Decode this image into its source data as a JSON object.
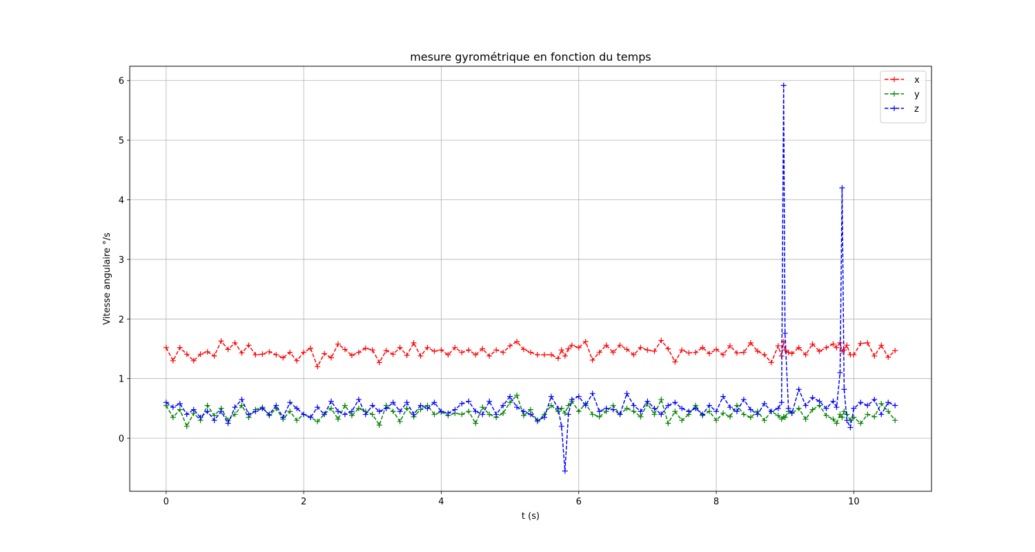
{
  "chart_data": {
    "type": "line",
    "title": "mesure gyrométrique en fonction du temps",
    "xlabel": "t (s)",
    "ylabel": "Vitesse angulaire °/s",
    "xlim": [
      -0.53,
      11.13
    ],
    "ylim": [
      -0.89,
      6.24
    ],
    "xticks": [
      0,
      2,
      4,
      6,
      8,
      10
    ],
    "yticks": [
      0,
      1,
      2,
      3,
      4,
      5,
      6
    ],
    "grid": true,
    "legend_position": "top-right",
    "x": [
      0.0,
      0.1,
      0.2,
      0.3,
      0.4,
      0.5,
      0.6,
      0.7,
      0.8,
      0.9,
      1.0,
      1.1,
      1.2,
      1.3,
      1.4,
      1.5,
      1.6,
      1.7,
      1.8,
      1.9,
      2.0,
      2.1,
      2.2,
      2.3,
      2.4,
      2.5,
      2.6,
      2.7,
      2.8,
      2.9,
      3.0,
      3.1,
      3.2,
      3.3,
      3.4,
      3.5,
      3.6,
      3.7,
      3.8,
      3.9,
      4.0,
      4.1,
      4.2,
      4.3,
      4.4,
      4.5,
      4.6,
      4.7,
      4.8,
      4.9,
      5.0,
      5.1,
      5.2,
      5.3,
      5.4,
      5.5,
      5.6,
      5.7,
      5.75,
      5.8,
      5.85,
      5.9,
      6.0,
      6.1,
      6.2,
      6.3,
      6.4,
      6.5,
      6.6,
      6.7,
      6.8,
      6.9,
      7.0,
      7.1,
      7.2,
      7.3,
      7.4,
      7.5,
      7.6,
      7.7,
      7.8,
      7.9,
      8.0,
      8.1,
      8.2,
      8.3,
      8.4,
      8.5,
      8.6,
      8.7,
      8.8,
      8.9,
      8.95,
      8.98,
      9.0,
      9.05,
      9.1,
      9.2,
      9.3,
      9.4,
      9.5,
      9.6,
      9.7,
      9.75,
      9.8,
      9.83,
      9.86,
      9.9,
      9.95,
      10.0,
      10.1,
      10.2,
      10.3,
      10.4,
      10.5,
      10.6
    ],
    "series": [
      {
        "name": "x",
        "color": "#ff0000",
        "values": [
          1.52,
          1.3,
          1.52,
          1.41,
          1.3,
          1.41,
          1.45,
          1.38,
          1.63,
          1.49,
          1.6,
          1.43,
          1.56,
          1.4,
          1.41,
          1.45,
          1.4,
          1.35,
          1.44,
          1.3,
          1.44,
          1.51,
          1.2,
          1.42,
          1.35,
          1.58,
          1.49,
          1.39,
          1.44,
          1.51,
          1.48,
          1.27,
          1.47,
          1.41,
          1.52,
          1.39,
          1.6,
          1.38,
          1.52,
          1.46,
          1.48,
          1.4,
          1.52,
          1.44,
          1.48,
          1.4,
          1.5,
          1.38,
          1.48,
          1.44,
          1.55,
          1.62,
          1.49,
          1.44,
          1.4,
          1.4,
          1.4,
          1.34,
          1.48,
          1.38,
          1.5,
          1.56,
          1.52,
          1.62,
          1.31,
          1.44,
          1.56,
          1.44,
          1.56,
          1.49,
          1.4,
          1.52,
          1.48,
          1.46,
          1.64,
          1.5,
          1.28,
          1.48,
          1.43,
          1.44,
          1.52,
          1.42,
          1.49,
          1.4,
          1.55,
          1.43,
          1.44,
          1.6,
          1.46,
          1.4,
          1.27,
          1.55,
          1.38,
          1.62,
          1.48,
          1.44,
          1.42,
          1.52,
          1.4,
          1.58,
          1.46,
          1.52,
          1.58,
          1.52,
          1.6,
          1.46,
          1.48,
          1.56,
          1.4,
          1.4,
          1.59,
          1.6,
          1.38,
          1.56,
          1.36,
          1.47
        ]
      },
      {
        "name": "y",
        "color": "#008000",
        "values": [
          0.55,
          0.35,
          0.48,
          0.2,
          0.42,
          0.3,
          0.55,
          0.38,
          0.5,
          0.3,
          0.4,
          0.55,
          0.35,
          0.48,
          0.52,
          0.38,
          0.5,
          0.32,
          0.45,
          0.3,
          0.4,
          0.35,
          0.28,
          0.4,
          0.5,
          0.32,
          0.55,
          0.38,
          0.5,
          0.45,
          0.4,
          0.22,
          0.55,
          0.45,
          0.28,
          0.5,
          0.36,
          0.48,
          0.55,
          0.4,
          0.44,
          0.38,
          0.42,
          0.4,
          0.45,
          0.25,
          0.52,
          0.4,
          0.35,
          0.42,
          0.6,
          0.72,
          0.38,
          0.48,
          0.28,
          0.4,
          0.55,
          0.45,
          0.5,
          0.42,
          0.55,
          0.62,
          0.45,
          0.58,
          0.4,
          0.36,
          0.45,
          0.55,
          0.4,
          0.5,
          0.45,
          0.36,
          0.58,
          0.4,
          0.65,
          0.25,
          0.45,
          0.3,
          0.4,
          0.55,
          0.38,
          0.45,
          0.3,
          0.42,
          0.36,
          0.55,
          0.4,
          0.35,
          0.45,
          0.3,
          0.45,
          0.38,
          0.32,
          0.36,
          0.35,
          0.45,
          0.42,
          0.5,
          0.32,
          0.48,
          0.55,
          0.38,
          0.32,
          0.25,
          0.4,
          0.35,
          0.45,
          0.4,
          0.3,
          0.35,
          0.25,
          0.4,
          0.36,
          0.58,
          0.45,
          0.3
        ]
      },
      {
        "name": "z",
        "color": "#0000ff",
        "values": [
          0.6,
          0.52,
          0.58,
          0.4,
          0.48,
          0.35,
          0.45,
          0.3,
          0.45,
          0.25,
          0.52,
          0.65,
          0.4,
          0.45,
          0.5,
          0.4,
          0.55,
          0.35,
          0.6,
          0.5,
          0.4,
          0.35,
          0.52,
          0.4,
          0.62,
          0.45,
          0.4,
          0.45,
          0.65,
          0.4,
          0.55,
          0.45,
          0.5,
          0.6,
          0.45,
          0.6,
          0.4,
          0.55,
          0.5,
          0.6,
          0.45,
          0.42,
          0.48,
          0.58,
          0.62,
          0.45,
          0.4,
          0.62,
          0.4,
          0.55,
          0.7,
          0.52,
          0.45,
          0.4,
          0.3,
          0.35,
          0.7,
          0.5,
          0.2,
          -0.55,
          0.4,
          0.65,
          0.7,
          0.55,
          0.75,
          0.45,
          0.5,
          0.48,
          0.4,
          0.75,
          0.55,
          0.45,
          0.62,
          0.5,
          0.4,
          0.55,
          0.6,
          0.5,
          0.45,
          0.5,
          0.4,
          0.55,
          0.45,
          0.7,
          0.52,
          0.45,
          0.65,
          0.48,
          0.4,
          0.58,
          0.45,
          0.5,
          0.6,
          5.92,
          1.76,
          0.5,
          0.42,
          0.82,
          0.55,
          0.68,
          0.62,
          0.5,
          0.62,
          0.52,
          1.1,
          4.2,
          0.82,
          0.3,
          0.18,
          0.5,
          0.6,
          0.55,
          0.65,
          0.4,
          0.6,
          0.55
        ]
      }
    ]
  }
}
